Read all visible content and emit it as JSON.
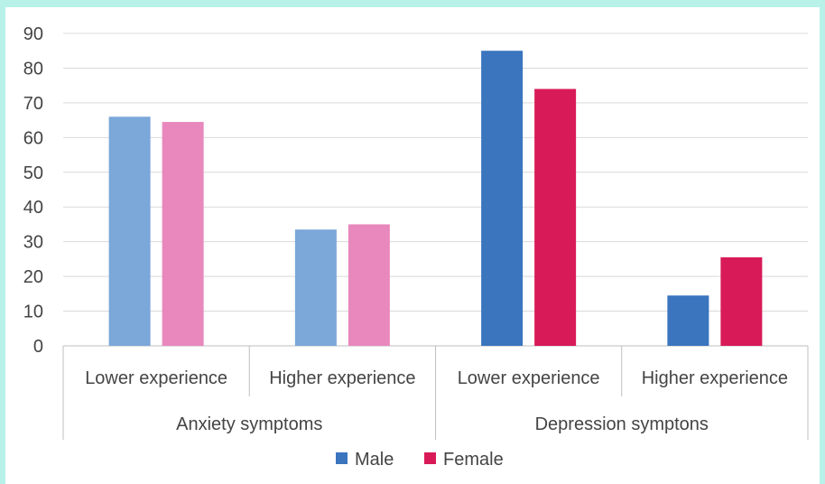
{
  "chart_data": {
    "type": "bar",
    "categories": [
      "Lower experience",
      "Higher experience",
      "Lower experience",
      "Higher experience"
    ],
    "groups": [
      "Anxiety symptoms",
      "Depression symptons"
    ],
    "ylim": [
      0,
      90
    ],
    "yticks": [
      0,
      10,
      20,
      30,
      40,
      50,
      60,
      70,
      80,
      90
    ],
    "grid": true,
    "legend_position": "bottom",
    "series": [
      {
        "name": "Male",
        "values": [
          66,
          33.5,
          85,
          14.5
        ],
        "colors": [
          "#7ba7d9",
          "#7ba7d9",
          "#3a75be",
          "#3a75be"
        ],
        "legend_color": "#3a75be"
      },
      {
        "name": "Female",
        "values": [
          64.5,
          35,
          74,
          25.5
        ],
        "colors": [
          "#e888bd",
          "#e888bd",
          "#d81b58",
          "#d81b58"
        ],
        "legend_color": "#d81b58"
      }
    ]
  }
}
